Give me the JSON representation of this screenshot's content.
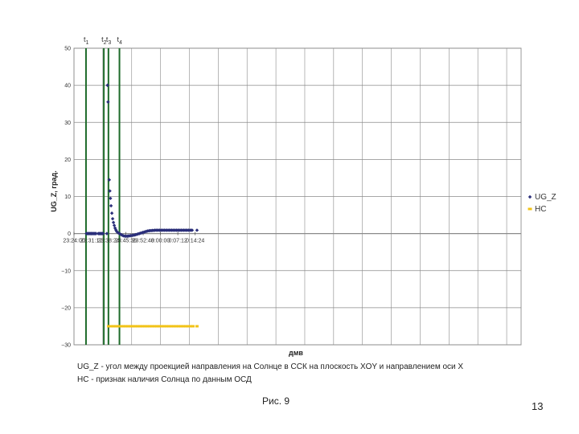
{
  "chart_data": {
    "type": "scatter",
    "xlabel": "дмв",
    "ylabel": "UG_Z, град.",
    "ylim": [
      -30,
      50
    ],
    "y_ticks": [
      50,
      40,
      30,
      20,
      10,
      0,
      -10,
      -20,
      -30
    ],
    "x_tick_labels": [
      "23:24:00",
      "23:31:12",
      "23:38:24",
      "23:45:36",
      "23:52:48",
      "0:00:00",
      "0:07:12",
      "0:14:24"
    ],
    "grid": true,
    "legend_position": "right",
    "colors": {
      "UG_Z": "#2b2f7a",
      "HC": "#f2c318",
      "markers": "#1e6b2a",
      "grid": "#8a8a8a"
    },
    "event_markers": [
      {
        "label": "t1",
        "sub": "1",
        "x": "23:29:00"
      },
      {
        "label": "t2",
        "sub": "2",
        "x": "23:36:25"
      },
      {
        "label": "t3",
        "sub": "3",
        "x": "23:38:20"
      },
      {
        "label": "t4",
        "sub": "4",
        "x": "23:42:55"
      }
    ],
    "series": [
      {
        "name": "UG_Z",
        "points": [
          [
            "23:29:10",
            0
          ],
          [
            "23:29:30",
            0
          ],
          [
            "23:29:50",
            0
          ],
          [
            "23:30:10",
            0
          ],
          [
            "23:30:30",
            0
          ],
          [
            "23:30:50",
            0
          ],
          [
            "23:31:10",
            0
          ],
          [
            "23:31:30",
            0
          ],
          [
            "23:31:50",
            0
          ],
          [
            "23:32:10",
            0
          ],
          [
            "23:32:30",
            0
          ],
          [
            "23:32:50",
            0
          ],
          [
            "23:33:10",
            0
          ],
          [
            "23:34:05",
            0
          ],
          [
            "23:34:25",
            0
          ],
          [
            "23:34:45",
            0
          ],
          [
            "23:35:05",
            0
          ],
          [
            "23:35:25",
            0
          ],
          [
            "23:35:45",
            0
          ],
          [
            "23:36:05",
            0
          ],
          [
            "23:37:40",
            0
          ],
          [
            "23:37:55",
            40
          ],
          [
            "23:38:10",
            35.5
          ],
          [
            "23:38:40",
            14.5
          ],
          [
            "23:38:55",
            11.5
          ],
          [
            "23:39:10",
            9.5
          ],
          [
            "23:39:25",
            7.5
          ],
          [
            "23:39:45",
            5.5
          ],
          [
            "23:40:05",
            4
          ],
          [
            "23:40:25",
            3
          ],
          [
            "23:40:45",
            2.2
          ],
          [
            "23:41:05",
            1.5
          ],
          [
            "23:41:25",
            1
          ],
          [
            "23:41:45",
            0.6
          ],
          [
            "23:42:10",
            0.3
          ],
          [
            "23:42:40",
            0.1
          ],
          [
            "23:43:10",
            -0.1
          ],
          [
            "23:43:40",
            -0.3
          ],
          [
            "23:44:10",
            -0.5
          ],
          [
            "23:44:40",
            -0.6
          ],
          [
            "23:45:10",
            -0.7
          ],
          [
            "23:45:40",
            -0.7
          ],
          [
            "23:46:10",
            -0.7
          ],
          [
            "23:46:40",
            -0.65
          ],
          [
            "23:47:10",
            -0.6
          ],
          [
            "23:47:40",
            -0.55
          ],
          [
            "23:48:10",
            -0.5
          ],
          [
            "23:48:40",
            -0.45
          ],
          [
            "23:49:10",
            -0.4
          ],
          [
            "23:49:40",
            -0.3
          ],
          [
            "23:50:10",
            -0.2
          ],
          [
            "23:50:40",
            -0.1
          ],
          [
            "23:51:10",
            0
          ],
          [
            "23:51:40",
            0.1
          ],
          [
            "23:52:10",
            0.2
          ],
          [
            "23:52:40",
            0.3
          ],
          [
            "23:53:10",
            0.4
          ],
          [
            "23:53:40",
            0.5
          ],
          [
            "23:54:10",
            0.6
          ],
          [
            "23:54:40",
            0.7
          ],
          [
            "23:55:10",
            0.75
          ],
          [
            "23:55:40",
            0.8
          ],
          [
            "23:56:10",
            0.8
          ],
          [
            "23:56:40",
            0.85
          ],
          [
            "23:57:10",
            0.85
          ],
          [
            "23:57:40",
            0.9
          ],
          [
            "23:58:10",
            0.9
          ],
          [
            "23:58:40",
            0.9
          ],
          [
            "23:59:10",
            0.9
          ],
          [
            "23:59:40",
            0.9
          ],
          [
            "0:00:10",
            0.9
          ],
          [
            "0:00:40",
            0.9
          ],
          [
            "0:01:10",
            0.9
          ],
          [
            "0:01:40",
            0.9
          ],
          [
            "0:02:10",
            0.9
          ],
          [
            "0:02:40",
            0.9
          ],
          [
            "0:03:10",
            0.9
          ],
          [
            "0:03:40",
            0.9
          ],
          [
            "0:04:10",
            0.9
          ],
          [
            "0:04:40",
            0.9
          ],
          [
            "0:05:10",
            0.9
          ],
          [
            "0:05:40",
            0.9
          ],
          [
            "0:06:10",
            0.9
          ],
          [
            "0:06:40",
            0.9
          ],
          [
            "0:07:10",
            0.9
          ],
          [
            "0:07:40",
            0.9
          ],
          [
            "0:08:10",
            0.9
          ],
          [
            "0:08:40",
            0.9
          ],
          [
            "0:09:10",
            0.9
          ],
          [
            "0:09:40",
            0.9
          ],
          [
            "0:10:10",
            0.9
          ],
          [
            "0:10:40",
            0.9
          ],
          [
            "0:11:10",
            0.9
          ],
          [
            "0:11:40",
            0.9
          ],
          [
            "0:12:10",
            0.9
          ],
          [
            "0:12:40",
            0.9
          ],
          [
            "0:13:10",
            0.9
          ],
          [
            "0:15:10",
            0.9
          ]
        ]
      },
      {
        "name": "HC",
        "points": [
          [
            "23:38:25",
            -25
          ],
          [
            "23:39:30",
            -25
          ],
          [
            "23:40:30",
            -25
          ],
          [
            "23:41:30",
            -25
          ],
          [
            "23:42:30",
            -25
          ],
          [
            "23:43:30",
            -25
          ],
          [
            "23:44:30",
            -25
          ],
          [
            "23:45:30",
            -25
          ],
          [
            "23:46:30",
            -25
          ],
          [
            "23:47:30",
            -25
          ],
          [
            "23:48:30",
            -25
          ],
          [
            "23:49:30",
            -25
          ],
          [
            "23:50:30",
            -25
          ],
          [
            "23:51:30",
            -25
          ],
          [
            "23:52:30",
            -25
          ],
          [
            "23:53:30",
            -25
          ],
          [
            "23:54:30",
            -25
          ],
          [
            "23:55:30",
            -25
          ],
          [
            "23:56:30",
            -25
          ],
          [
            "23:57:30",
            -25
          ],
          [
            "23:58:30",
            -25
          ],
          [
            "23:59:30",
            -25
          ],
          [
            "0:00:30",
            -25
          ],
          [
            "0:01:30",
            -25
          ],
          [
            "0:02:30",
            -25
          ],
          [
            "0:03:30",
            -25
          ],
          [
            "0:04:30",
            -25
          ],
          [
            "0:05:30",
            -25
          ],
          [
            "0:06:30",
            -25
          ],
          [
            "0:07:30",
            -25
          ],
          [
            "0:08:30",
            -25
          ],
          [
            "0:09:30",
            -25
          ],
          [
            "0:10:30",
            -25
          ],
          [
            "0:11:30",
            -25
          ],
          [
            "0:12:30",
            -25
          ],
          [
            "0:13:30",
            -25
          ],
          [
            "0:15:10",
            -25
          ]
        ]
      }
    ]
  },
  "caption": {
    "line1": "UG_Z - угол между проекцией направления на Солнце в ССК на плоскость XOY и направлением оси X",
    "line2": "НС      - признак наличия Солнца по данным ОСД"
  },
  "figure_caption": "Рис. 9",
  "page_number": "13"
}
